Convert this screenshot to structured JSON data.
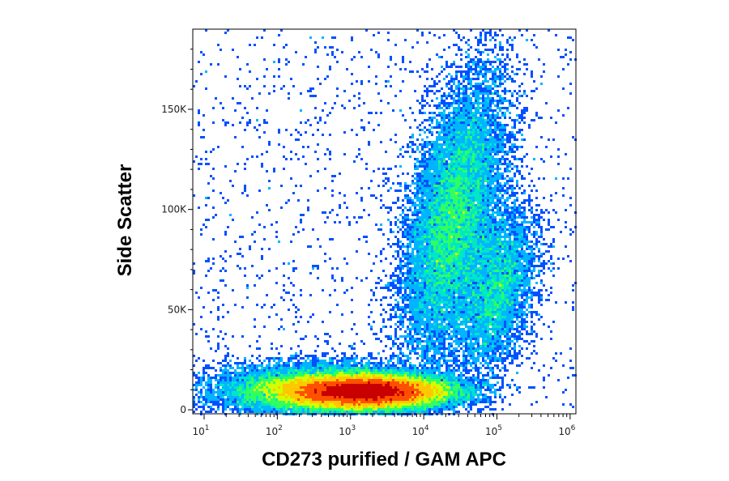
{
  "chart_data": {
    "type": "heatmap",
    "subtype": "flow-cytometry-density-dot-plot",
    "xlabel": "CD273 purified / GAM APC",
    "ylabel": "Side Scatter",
    "x_scale": "log",
    "xlim": [
      7,
      1200000
    ],
    "y_scale": "linear",
    "ylim": [
      -2000,
      190000
    ],
    "x_ticks": [
      {
        "base": "10",
        "exp": "1",
        "value": 10
      },
      {
        "base": "10",
        "exp": "2",
        "value": 100
      },
      {
        "base": "10",
        "exp": "3",
        "value": 1000
      },
      {
        "base": "10",
        "exp": "4",
        "value": 10000
      },
      {
        "base": "10",
        "exp": "5",
        "value": 100000
      },
      {
        "base": "10",
        "exp": "6",
        "value": 1000000
      }
    ],
    "y_ticks": [
      {
        "label": "0",
        "value": 0
      },
      {
        "label": "50K",
        "value": 50000
      },
      {
        "label": "100K",
        "value": 100000
      },
      {
        "label": "150K",
        "value": 150000
      }
    ],
    "colormap": [
      "#0000c8",
      "#0050ff",
      "#00b4ff",
      "#00e6c8",
      "#30ff60",
      "#d2ff00",
      "#ffc800",
      "#ff5000",
      "#c80000"
    ],
    "populations": [
      {
        "x_center": 1600,
        "y_center": 9000,
        "x_spread_decades": 0.55,
        "y_spread": 4000,
        "weight": 0.55
      },
      {
        "x_center": 400,
        "y_center": 10000,
        "x_spread_decades": 0.7,
        "y_spread": 6000,
        "weight": 0.18
      },
      {
        "x_center": 25000,
        "y_center": 95000,
        "x_spread_decades": 0.3,
        "y_spread": 35000,
        "weight": 0.2
      },
      {
        "x_center": 100000,
        "y_center": 60000,
        "x_spread_decades": 0.25,
        "y_spread": 20000,
        "weight": 0.07
      }
    ],
    "grid": false,
    "legend": "none"
  }
}
